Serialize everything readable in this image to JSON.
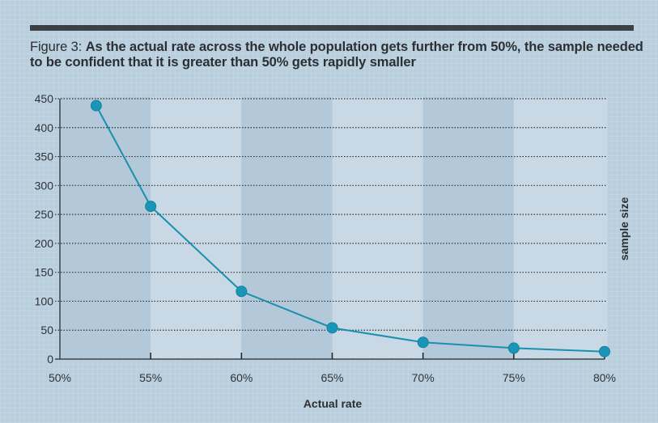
{
  "figure": {
    "prefix": "Figure 3: ",
    "title": "As the actual rate across the whole population gets further from 50%, the sample needed to be confident that it is greater than 50% gets rapidly smaller"
  },
  "colors": {
    "background": "#b9cfde",
    "band_dark": "#b3c9da",
    "band_light": "#c8d8e4",
    "line": "#1a8fae",
    "marker": "#1a95b5",
    "axis": "#3d4146",
    "rule": "#3d4146"
  },
  "chart_data": {
    "type": "line",
    "title": "As the actual rate across the whole population gets further from 50%, the sample needed to be confident that it is greater than 50% gets rapidly smaller",
    "xlabel": "Actual rate",
    "ylabel": "sample size",
    "xlim": [
      50,
      80
    ],
    "ylim": [
      0,
      450
    ],
    "x_ticks": [
      50,
      55,
      60,
      65,
      70,
      75,
      80
    ],
    "x_tick_labels": [
      "50%",
      "55%",
      "60%",
      "65%",
      "70%",
      "75%",
      "80%"
    ],
    "y_ticks": [
      0,
      50,
      100,
      150,
      200,
      250,
      300,
      350,
      400,
      450
    ],
    "y_tick_labels": [
      "0",
      "50",
      "100",
      "150",
      "200",
      "250",
      "300",
      "350",
      "400",
      "450"
    ],
    "grid": "horizontal dotted",
    "legend": "none",
    "series": [
      {
        "name": "sample size",
        "x": [
          52,
          55,
          60,
          65,
          70,
          75,
          80
        ],
        "values": [
          438,
          264,
          117,
          54,
          29,
          19,
          13
        ]
      }
    ]
  }
}
